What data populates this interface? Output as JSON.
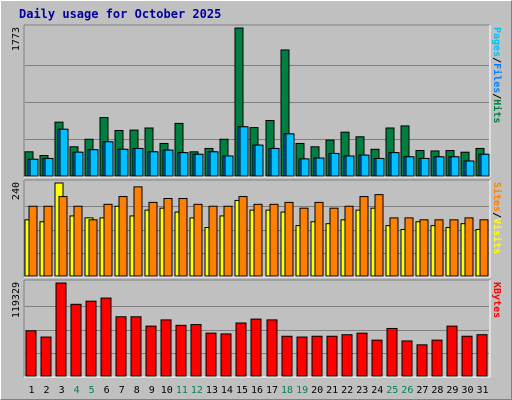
{
  "title": "Daily usage for October 2025",
  "colors": {
    "hits": "#008040",
    "files": "#00c0ff",
    "sites": "#ff8000",
    "visits": "#ffff00",
    "kbytes": "#ff0000",
    "weekend": "#00805c",
    "weekday": "#000000",
    "plot_bg": "#c0c0c0"
  },
  "chart_data": [
    {
      "type": "bar",
      "title": "Daily usage for October 2025",
      "side_label": [
        "Pages",
        "/",
        "Files",
        "/",
        "Hits"
      ],
      "side_label_colors": [
        "#00c0ff",
        "#000000",
        "#0080ff",
        "#000000",
        "#008040"
      ],
      "y_max_label": "1773",
      "ylim": [
        0,
        1773
      ],
      "categories": [
        "1",
        "2",
        "3",
        "4",
        "5",
        "6",
        "7",
        "8",
        "9",
        "10",
        "11",
        "12",
        "13",
        "14",
        "15",
        "16",
        "17",
        "18",
        "19",
        "20",
        "21",
        "22",
        "23",
        "24",
        "25",
        "26",
        "27",
        "28",
        "29",
        "30",
        "31"
      ],
      "weekend_days": [
        4,
        5,
        11,
        12,
        18,
        19,
        25,
        26
      ],
      "series": [
        {
          "name": "Hits",
          "color": "#008040",
          "values": [
            290,
            245,
            645,
            350,
            440,
            700,
            545,
            550,
            575,
            390,
            630,
            290,
            330,
            440,
            1773,
            580,
            665,
            1510,
            390,
            350,
            430,
            525,
            470,
            320,
            575,
            600,
            305,
            300,
            305,
            285,
            330
          ]
        },
        {
          "name": "Files",
          "color": "#0080ff",
          "values": [
            200,
            210,
            560,
            285,
            315,
            410,
            320,
            330,
            290,
            310,
            280,
            260,
            290,
            240,
            590,
            370,
            330,
            505,
            205,
            215,
            270,
            240,
            250,
            210,
            280,
            230,
            210,
            230,
            230,
            180,
            260
          ]
        },
        {
          "name": "Pages",
          "color": "#00c0ff",
          "values": [
            200,
            210,
            560,
            285,
            315,
            410,
            320,
            330,
            290,
            310,
            280,
            260,
            290,
            240,
            590,
            370,
            330,
            505,
            205,
            215,
            270,
            240,
            250,
            210,
            280,
            230,
            210,
            230,
            230,
            180,
            260
          ]
        }
      ]
    },
    {
      "type": "bar",
      "side_label": [
        "Sites",
        "/",
        "Visits"
      ],
      "side_label_colors": [
        "#ff8000",
        "#000000",
        "#ffff00"
      ],
      "y_max_label": "240",
      "ylim": [
        0,
        240
      ],
      "categories": [
        "1",
        "2",
        "3",
        "4",
        "5",
        "6",
        "7",
        "8",
        "9",
        "10",
        "11",
        "12",
        "13",
        "14",
        "15",
        "16",
        "17",
        "18",
        "19",
        "20",
        "21",
        "22",
        "23",
        "24",
        "25",
        "26",
        "27",
        "28",
        "29",
        "30",
        "31"
      ],
      "series": [
        {
          "name": "Visits",
          "color": "#ffff00",
          "values": [
            145,
            140,
            240,
            155,
            150,
            150,
            180,
            155,
            170,
            175,
            165,
            150,
            125,
            155,
            195,
            170,
            170,
            165,
            130,
            140,
            135,
            145,
            170,
            175,
            130,
            120,
            140,
            130,
            125,
            135,
            120
          ]
        },
        {
          "name": "Sites",
          "color": "#ff8000",
          "values": [
            180,
            180,
            205,
            180,
            145,
            185,
            205,
            230,
            190,
            200,
            200,
            185,
            180,
            180,
            205,
            185,
            185,
            190,
            175,
            190,
            175,
            180,
            205,
            210,
            150,
            150,
            145,
            145,
            145,
            150,
            145
          ]
        }
      ]
    },
    {
      "type": "bar",
      "side_label": [
        "KBytes"
      ],
      "side_label_colors": [
        "#ff0000"
      ],
      "y_max_label": "119329",
      "ylim": [
        0,
        119329
      ],
      "categories": [
        "1",
        "2",
        "3",
        "4",
        "5",
        "6",
        "7",
        "8",
        "9",
        "10",
        "11",
        "12",
        "13",
        "14",
        "15",
        "16",
        "17",
        "18",
        "19",
        "20",
        "21",
        "22",
        "23",
        "24",
        "25",
        "26",
        "27",
        "28",
        "29",
        "30",
        "31"
      ],
      "series": [
        {
          "name": "KBytes",
          "color": "#ff0000",
          "values": [
            58000,
            50000,
            119329,
            92000,
            96000,
            100000,
            76000,
            76000,
            64000,
            72000,
            65000,
            66000,
            55000,
            54000,
            68000,
            73000,
            72000,
            51000,
            50000,
            51000,
            51000,
            53000,
            55000,
            46000,
            61000,
            45000,
            40000,
            46000,
            64000,
            51000,
            53000
          ]
        }
      ]
    }
  ]
}
